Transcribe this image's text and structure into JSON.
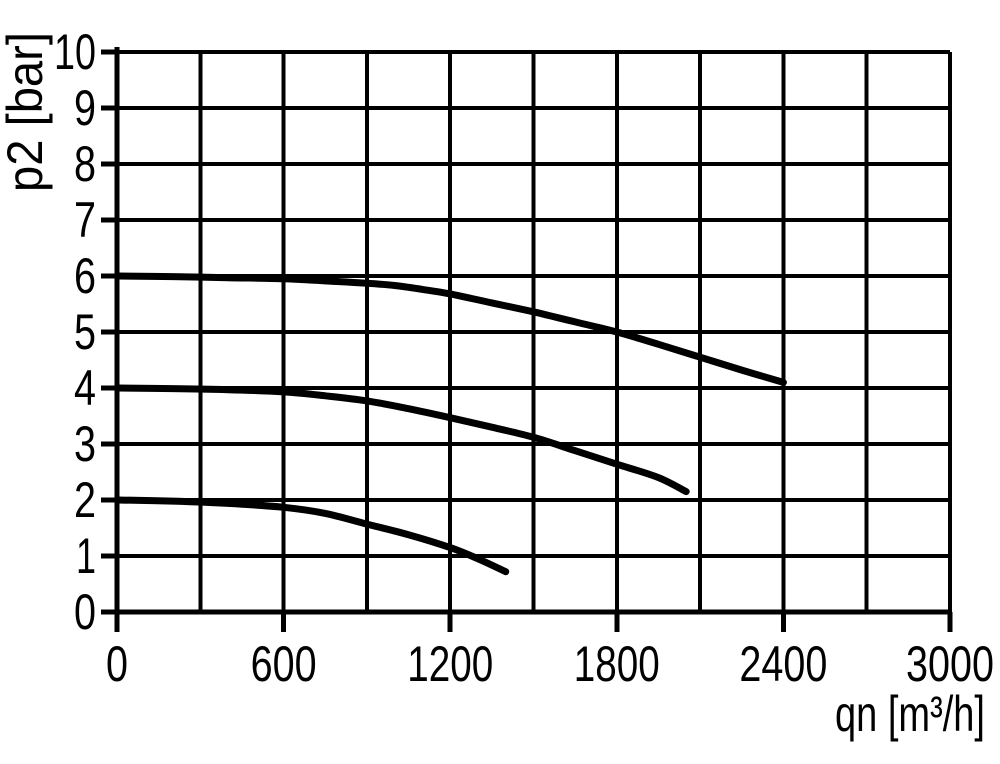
{
  "chart_data": {
    "type": "line",
    "title": "",
    "xlabel": "qn [m³/h]",
    "ylabel": "p2 [bar]",
    "xlim": [
      0,
      3000
    ],
    "ylim": [
      0,
      10
    ],
    "x_tick_values": [
      0,
      600,
      1200,
      1800,
      2400,
      3000
    ],
    "x_tick_labels": [
      "0",
      "600",
      "1200",
      "1800",
      "2400",
      "3000"
    ],
    "x_grid_step": 300,
    "y_tick_values": [
      0,
      1,
      2,
      3,
      4,
      5,
      6,
      7,
      8,
      9,
      10
    ],
    "y_tick_labels": [
      "0",
      "1",
      "2",
      "3",
      "4",
      "5",
      "6",
      "7",
      "8",
      "9",
      "10"
    ],
    "grid": "on",
    "legend": "none",
    "line_color": "#000000",
    "grid_color": "#000000",
    "background_color": "#ffffff",
    "series": [
      {
        "name": "curve-inlet-6bar",
        "points": [
          [
            0,
            6.0
          ],
          [
            200,
            5.99
          ],
          [
            400,
            5.97
          ],
          [
            600,
            5.95
          ],
          [
            800,
            5.9
          ],
          [
            900,
            5.87
          ],
          [
            1000,
            5.83
          ],
          [
            1100,
            5.76
          ],
          [
            1200,
            5.68
          ],
          [
            1350,
            5.52
          ],
          [
            1500,
            5.36
          ],
          [
            1650,
            5.18
          ],
          [
            1800,
            5.0
          ],
          [
            1950,
            4.78
          ],
          [
            2100,
            4.55
          ],
          [
            2250,
            4.32
          ],
          [
            2400,
            4.1
          ]
        ]
      },
      {
        "name": "curve-inlet-4bar",
        "points": [
          [
            0,
            4.0
          ],
          [
            200,
            3.99
          ],
          [
            400,
            3.97
          ],
          [
            600,
            3.93
          ],
          [
            750,
            3.86
          ],
          [
            900,
            3.77
          ],
          [
            1050,
            3.63
          ],
          [
            1200,
            3.47
          ],
          [
            1350,
            3.3
          ],
          [
            1500,
            3.12
          ],
          [
            1650,
            2.88
          ],
          [
            1800,
            2.64
          ],
          [
            1950,
            2.4
          ],
          [
            2050,
            2.15
          ]
        ]
      },
      {
        "name": "curve-inlet-2bar",
        "points": [
          [
            0,
            2.0
          ],
          [
            200,
            1.98
          ],
          [
            400,
            1.94
          ],
          [
            600,
            1.87
          ],
          [
            750,
            1.76
          ],
          [
            900,
            1.57
          ],
          [
            1050,
            1.38
          ],
          [
            1200,
            1.15
          ],
          [
            1300,
            0.95
          ],
          [
            1400,
            0.72
          ]
        ]
      }
    ]
  }
}
